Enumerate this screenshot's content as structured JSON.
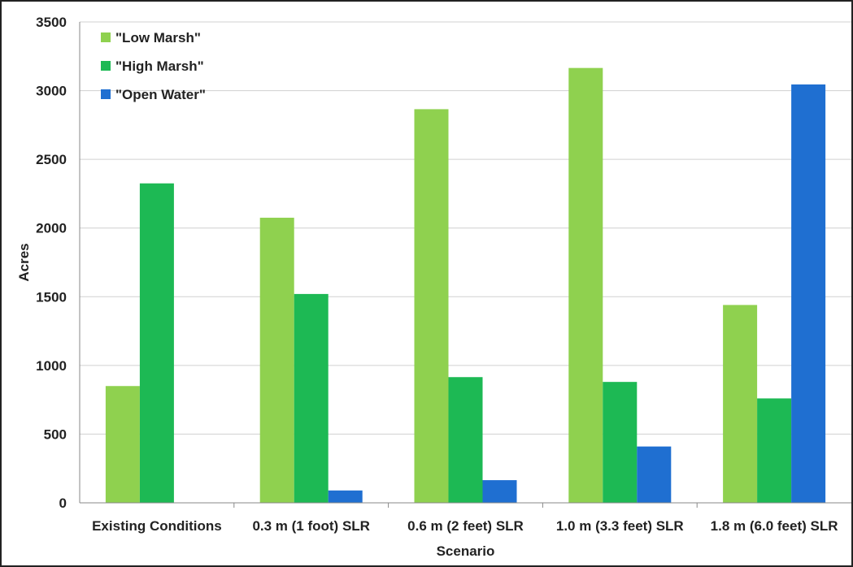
{
  "chart_data": {
    "type": "bar",
    "title": "",
    "xlabel": "Scenario",
    "ylabel": "Acres",
    "ylim": [
      0,
      3500
    ],
    "yticks": [
      0,
      500,
      1000,
      1500,
      2000,
      2500,
      3000,
      3500
    ],
    "grid": true,
    "legend_position": "top-left",
    "categories": [
      "Existing Conditions",
      "0.3 m (1 foot) SLR",
      "0.6 m (2 feet) SLR",
      "1.0 m (3.3 feet) SLR",
      "1.8 m (6.0 feet) SLR"
    ],
    "series": [
      {
        "name": "\"Low Marsh\"",
        "color": "#8fd14f",
        "values": [
          850,
          2075,
          2865,
          3165,
          1440
        ]
      },
      {
        "name": "\"High Marsh\"",
        "color": "#1db954",
        "values": [
          2325,
          1520,
          915,
          880,
          760
        ]
      },
      {
        "name": "\"Open Water\"",
        "color": "#1f6fd1",
        "values": [
          0,
          90,
          165,
          410,
          3045
        ]
      }
    ]
  }
}
